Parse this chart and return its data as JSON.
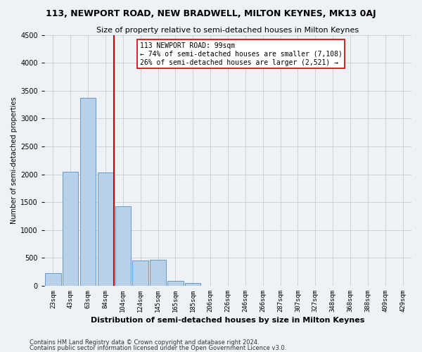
{
  "title1": "113, NEWPORT ROAD, NEW BRADWELL, MILTON KEYNES, MK13 0AJ",
  "title2": "Size of property relative to semi-detached houses in Milton Keynes",
  "xlabel": "Distribution of semi-detached houses by size in Milton Keynes",
  "ylabel": "Number of semi-detached properties",
  "footnote1": "Contains HM Land Registry data © Crown copyright and database right 2024.",
  "footnote2": "Contains public sector information licensed under the Open Government Licence v3.0.",
  "categories": [
    "23sqm",
    "43sqm",
    "63sqm",
    "84sqm",
    "104sqm",
    "124sqm",
    "145sqm",
    "165sqm",
    "185sqm",
    "206sqm",
    "226sqm",
    "246sqm",
    "266sqm",
    "287sqm",
    "307sqm",
    "327sqm",
    "348sqm",
    "368sqm",
    "388sqm",
    "409sqm",
    "429sqm"
  ],
  "values": [
    230,
    2040,
    3370,
    2030,
    1430,
    460,
    470,
    90,
    50,
    0,
    0,
    0,
    0,
    0,
    0,
    0,
    0,
    0,
    0,
    0,
    0
  ],
  "bar_color": "#b8d0e8",
  "bar_edge_color": "#6699cc",
  "vline_color": "#cc0000",
  "vline_x_index": 3.5,
  "ylim": [
    0,
    4500
  ],
  "yticks": [
    0,
    500,
    1000,
    1500,
    2000,
    2500,
    3000,
    3500,
    4000,
    4500
  ],
  "annotation_title": "113 NEWPORT ROAD: 99sqm",
  "annotation_line1": "← 74% of semi-detached houses are smaller (7,108)",
  "annotation_line2": "26% of semi-detached houses are larger (2,521) →",
  "annotation_box_color": "#ffffff",
  "annotation_box_edge": "#cc0000",
  "grid_color": "#cccccc",
  "background_color": "#eef2f7",
  "title1_fontsize": 9,
  "title2_fontsize": 8,
  "xlabel_fontsize": 8,
  "ylabel_fontsize": 7,
  "xtick_fontsize": 6.5,
  "ytick_fontsize": 7,
  "annotation_fontsize": 7,
  "footnote_fontsize": 6
}
